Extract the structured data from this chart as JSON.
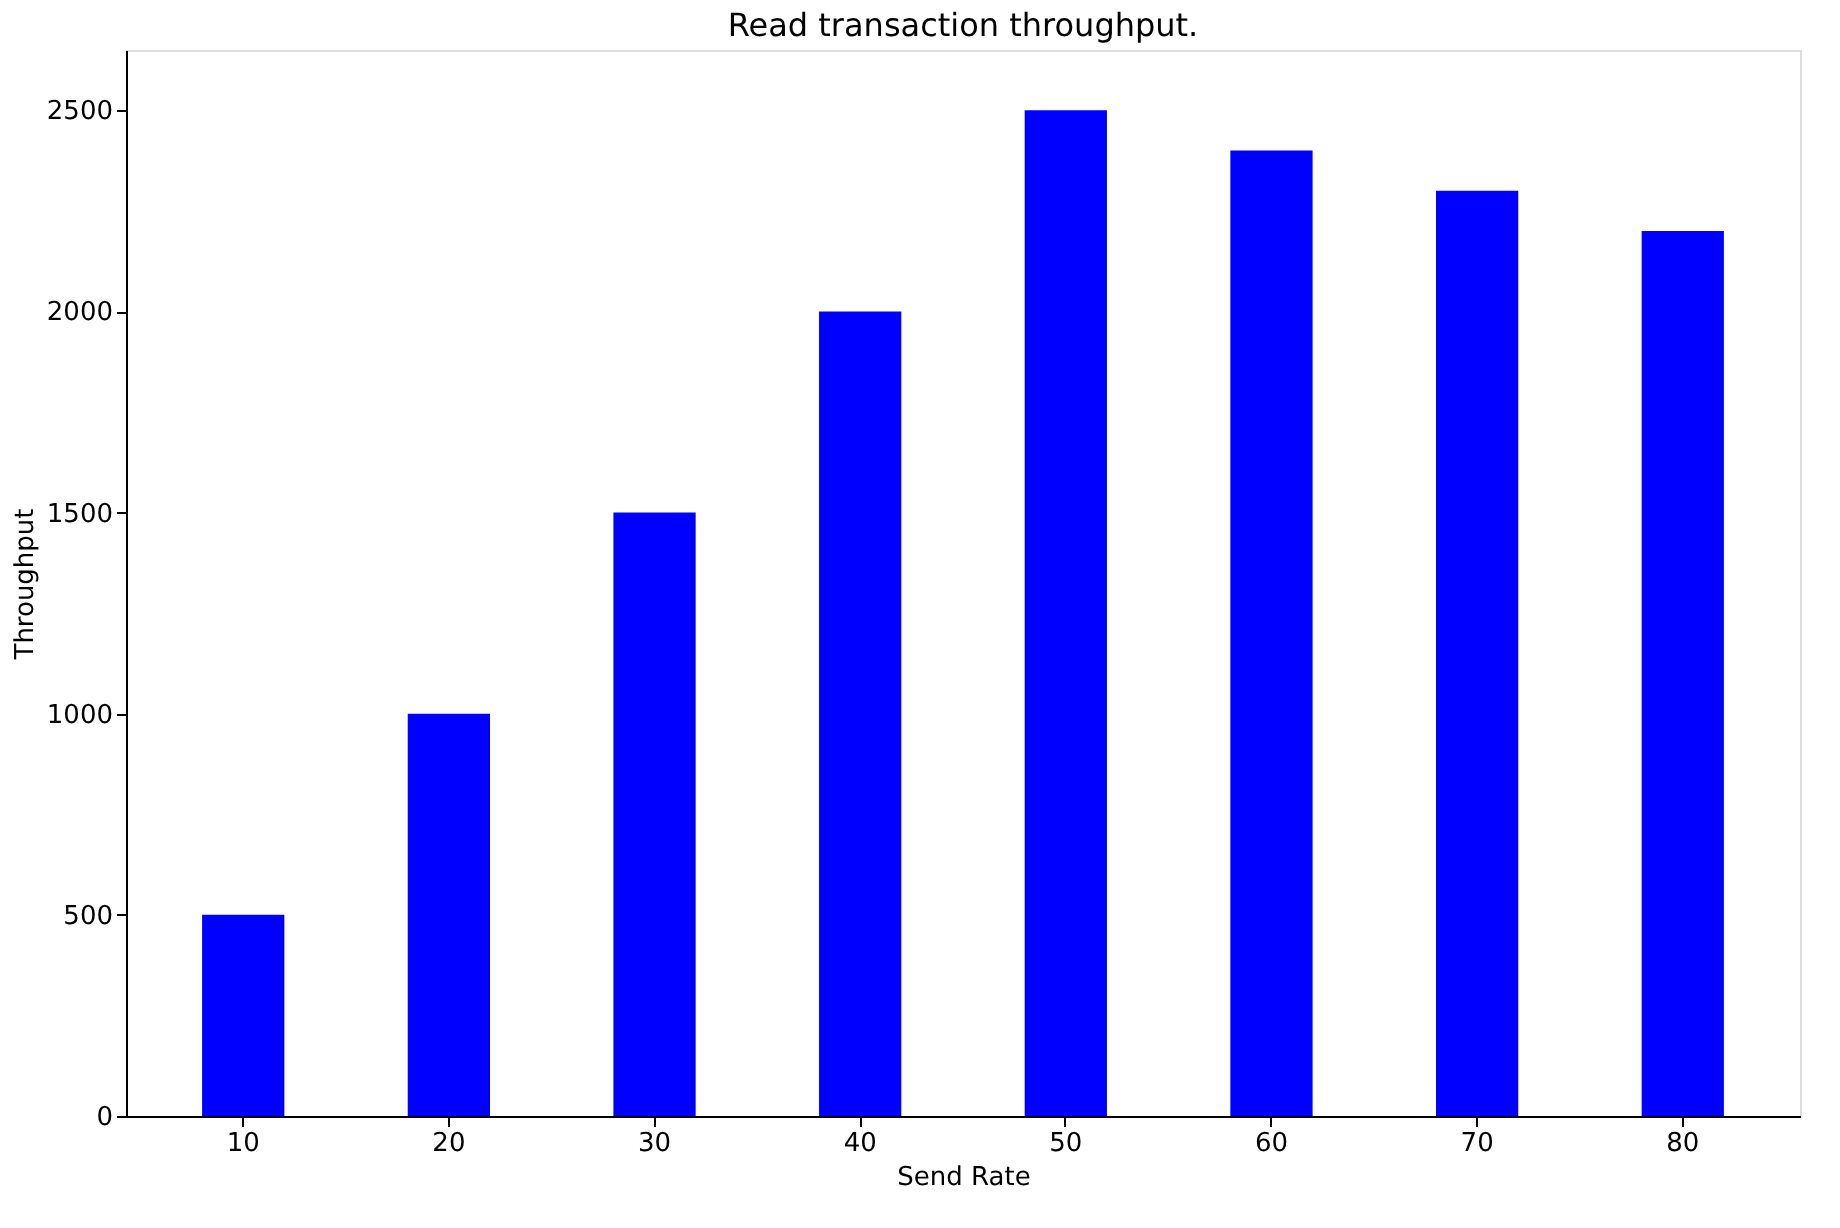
{
  "chart_data": {
    "type": "bar",
    "title": "Read transaction throughput.",
    "xlabel": "Send Rate",
    "ylabel": "Throughput",
    "categories": [
      "10",
      "20",
      "30",
      "40",
      "50",
      "60",
      "70",
      "80"
    ],
    "values": [
      500,
      1000,
      1500,
      2000,
      2500,
      2400,
      2300,
      2200
    ],
    "color": "#0000ff",
    "ylim": [
      0,
      2650
    ],
    "yticks": [
      0,
      500,
      1000,
      1500,
      2000,
      2500
    ],
    "grid": false
  }
}
